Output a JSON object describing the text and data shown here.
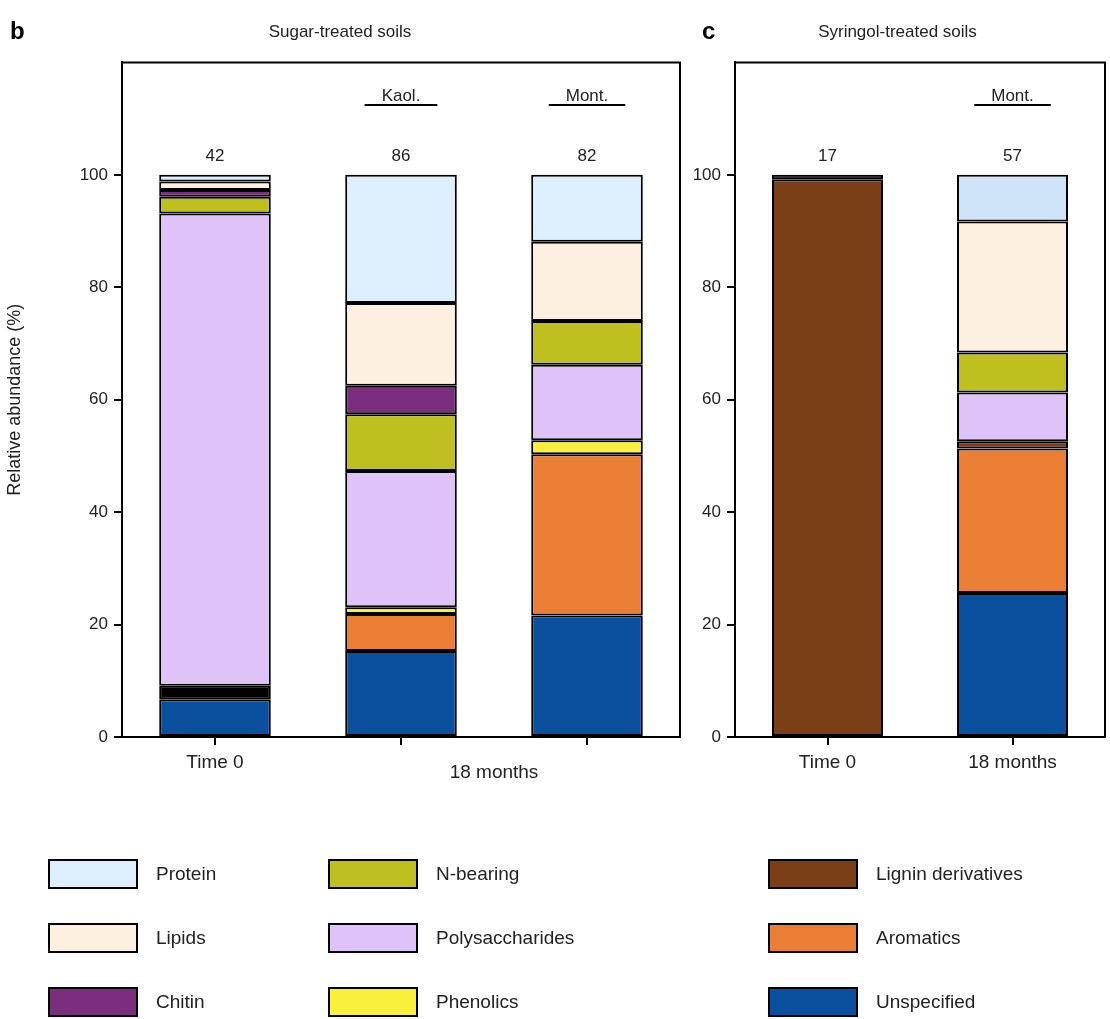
{
  "chart_data": [
    {
      "type": "bar",
      "title": "Sugar-treated soils",
      "ylabel": "Relative abundance (%)",
      "categories": [
        "Time 0",
        null,
        null
      ],
      "stacked": true,
      "ylim": [
        0,
        120
      ],
      "yticks": [
        0,
        20,
        40,
        60,
        80,
        100
      ],
      "grid": false,
      "legend": "bottom",
      "annotations": [
        "b",
        "Kaol.",
        "Mont.",
        "18 months",
        "42",
        "86",
        "82"
      ],
      "series": [
        {
          "color": "#0b4f9f",
          "values": [
            6.7,
            15.3,
            21.6
          ]
        },
        {
          "color": "#000000",
          "values": [
            2.4,
            null,
            null
          ]
        },
        {
          "color": "#eb7e35",
          "values": [
            null,
            6.6,
            28.7
          ]
        },
        {
          "name": "Phenolics",
          "color": "#f8f03a",
          "values": [
            null,
            1.2,
            2.5
          ]
        },
        {
          "name": "Polysaccharides",
          "color": "#dfc3f8",
          "values": [
            84,
            24.2,
            13.4
          ]
        },
        {
          "name": "N-bearing",
          "color": "#bfbf20",
          "values": [
            3,
            10.1,
            7.8
          ]
        },
        {
          "name": "Chitin",
          "color": "#7b2d7e",
          "values": [
            1.2,
            5.1,
            null
          ]
        },
        {
          "name": "Lipids",
          "color": "#fdf0e0",
          "values": [
            1.5,
            14.7,
            14.1
          ]
        },
        {
          "name": "Protein",
          "color": "#ddeefc",
          "values": [
            1.2,
            22.8,
            11.9
          ]
        }
      ]
    },
    {
      "type": "bar",
      "title": "Syringol-treated soils",
      "categories": [
        "Time 0",
        "18 months"
      ],
      "stacked": true,
      "ylim": [
        0,
        120
      ],
      "yticks": [
        0,
        20,
        40,
        60,
        80,
        100
      ],
      "grid": false,
      "legend": "bottom",
      "annotations": [
        "c",
        "Mont.",
        "17",
        "57"
      ],
      "series": [
        {
          "name": "Unspecified",
          "color": "#0b4f9f",
          "values": [
            null,
            25.6
          ]
        },
        {
          "name": "Aromatics",
          "color": "#eb7e35",
          "values": [
            null,
            25.7
          ]
        },
        {
          "name": "Lignin derivatives",
          "color": "#7b3f17",
          "values": [
            99.2,
            1.3
          ]
        },
        {
          "color": "#dfc3f8",
          "values": [
            null,
            8.7
          ]
        },
        {
          "color": "#bfbf20",
          "values": [
            null,
            7.1
          ]
        },
        {
          "color": "#fdf0e0",
          "values": [
            null,
            23.3
          ]
        },
        {
          "color": "#cfe4f8",
          "values": [
            null,
            8.3
          ]
        },
        {
          "color": "#000000",
          "values": [
            0.8,
            null
          ]
        }
      ]
    }
  ]
}
